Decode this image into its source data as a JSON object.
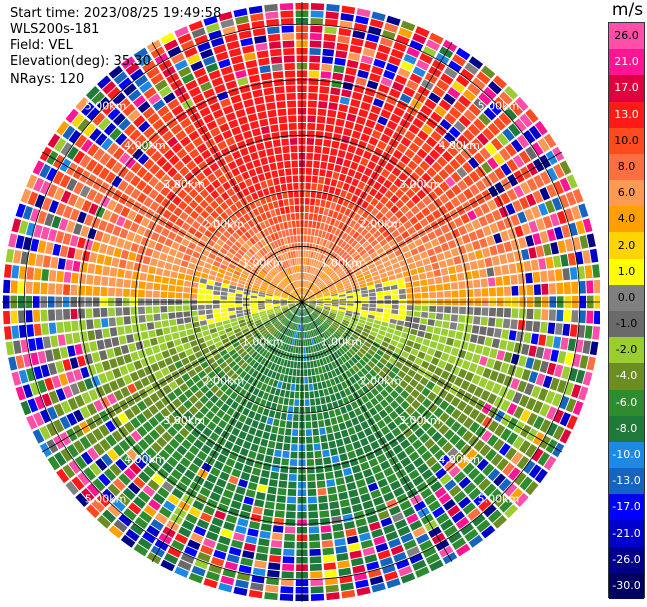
{
  "header": {
    "start_time": "Start time: 2023/08/25 19:49:58",
    "instrument": "WLS200s-181",
    "field": "Field: VEL",
    "elevation": "Elevation(deg): 35.30",
    "nrays": "NRays: 120"
  },
  "colorbar": {
    "unit": "m/s",
    "labels": [
      "26.0",
      "21.0",
      "17.0",
      "13.0",
      "10.0",
      "8.0",
      "6.0",
      "4.0",
      "2.0",
      "1.0",
      "0.0",
      "-1.0",
      "-2.0",
      "-4.0",
      "-6.0",
      "-8.0",
      "-10.0",
      "-13.0",
      "-17.0",
      "-21.0",
      "-26.0",
      "-30.0"
    ],
    "colors": [
      "#ff4fa8",
      "#ff1493",
      "#e0003c",
      "#ff1a1a",
      "#ff4a20",
      "#ff6e40",
      "#ff9a55",
      "#ff9f00",
      "#ffd400",
      "#ffff00",
      "#808080",
      "#6a6a6a",
      "#9acd32",
      "#6b8e23",
      "#2e8b2e",
      "#1f7a3a",
      "#1e88e5",
      "#1565c0",
      "#0000ff",
      "#0000cd",
      "#00008b",
      "#000060"
    ]
  },
  "chart_data": {
    "type": "ppi-polar",
    "field": "VEL",
    "units": "m/s",
    "nrays": 120,
    "elevation_deg": 35.3,
    "range_rings_km": [
      1.0,
      2.0,
      3.0,
      4.0,
      5.0
    ],
    "range_ring_labels": [
      "1.00km",
      "2.00km",
      "3.00km",
      "4.00km",
      "5.00km"
    ],
    "azimuth_lines_deg": [
      0,
      30,
      60,
      90,
      120,
      150,
      180,
      210,
      240,
      270,
      300,
      330
    ],
    "max_range_km": 5.4,
    "pattern": {
      "north_half": "positive velocities 2 to 13 m/s (orange/yellow)",
      "south_half": "negative velocities -4 to -10 m/s (green/blue)",
      "far_range": "noisy mixed values near edge"
    }
  }
}
